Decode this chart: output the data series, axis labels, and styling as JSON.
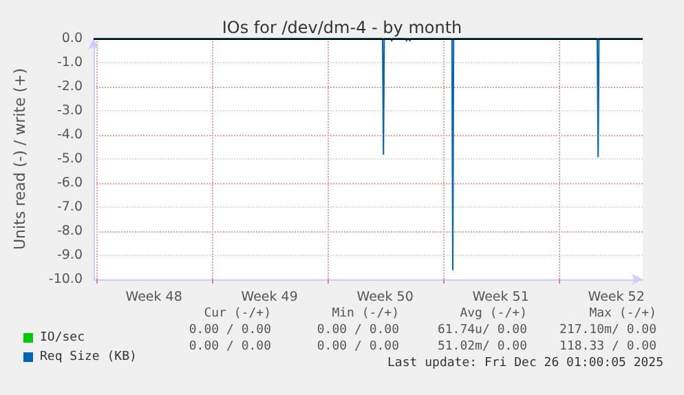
{
  "chart_data": {
    "type": "line",
    "title": "IOs for /dev/dm-4 - by month",
    "ylabel": "Units read (-) / write (+)",
    "xlim": [
      "2025-11-23T20:24",
      "2025-12-27T02:24"
    ],
    "ylim": [
      -10,
      0
    ],
    "xticks": [
      {
        "value": "2025-11-24",
        "label": null
      },
      {
        "value": "2025-11-27T12:00",
        "label": "Week 48"
      },
      {
        "value": "2025-12-01",
        "label": null
      },
      {
        "value": "2025-12-04T12:00",
        "label": "Week 49"
      },
      {
        "value": "2025-12-08",
        "label": null
      },
      {
        "value": "2025-12-11T12:00",
        "label": "Week 50"
      },
      {
        "value": "2025-12-15",
        "label": null
      },
      {
        "value": "2025-12-18T12:00",
        "label": "Week 51"
      },
      {
        "value": "2025-12-22",
        "label": null
      },
      {
        "value": "2025-12-25T12:00",
        "label": "Week 52"
      }
    ],
    "yticks": [
      {
        "value": -10,
        "label": "-10.0"
      },
      {
        "value": -9,
        "label": "-9.0"
      },
      {
        "value": -8,
        "label": "-8.0"
      },
      {
        "value": -7,
        "label": "-7.0"
      },
      {
        "value": -6,
        "label": "-6.0"
      },
      {
        "value": -5,
        "label": "-5.0"
      },
      {
        "value": -4,
        "label": "-4.0"
      },
      {
        "value": -3,
        "label": "-3.0"
      },
      {
        "value": -2,
        "label": "-2.0"
      },
      {
        "value": -1,
        "label": "-1.0"
      },
      {
        "value": 0,
        "label": "0.0"
      }
    ],
    "grid": true,
    "legend": "bottom left",
    "series": [
      {
        "name": "IO/sec",
        "color": "#00cc00"
      },
      {
        "name": "Req Size (KB)",
        "color": "#0066b3",
        "x": [
          "2025-11-23T20:24",
          "2025-12-11T08:24",
          "2025-12-11T09:36",
          "2025-12-11T10:48",
          "2025-12-11T20:24",
          "2025-12-11T21:36",
          "2025-12-11T22:48",
          "2025-12-12T18:00",
          "2025-12-12T19:12",
          "2025-12-12T20:24",
          "2025-12-12T22:48",
          "2025-12-13T00:00",
          "2025-12-13T01:12",
          "2025-12-15T13:12",
          "2025-12-15T14:24",
          "2025-12-15T15:36",
          "2025-12-24T08:24",
          "2025-12-24T09:36",
          "2025-12-24T10:48",
          "2025-12-27T02:24"
        ],
        "values": [
          0,
          0,
          -4.8,
          0,
          0,
          -0.1,
          0,
          0,
          -0.1,
          0,
          0,
          -0.1,
          0,
          0,
          -9.6,
          0,
          0,
          -4.9,
          0,
          0
        ]
      }
    ],
    "ref_lines": [
      {
        "axis": "y",
        "value": 0,
        "color": "#000000"
      }
    ],
    "annotations": [
      "Cur (-/+)",
      "Min (-/+)",
      "Avg (-/+)",
      "Max (-/+)",
      "0.00 / 0.00",
      "0.00 / 0.00",
      "61.74u/ 0.00",
      "217.10m/ 0.00",
      "0.00 / 0.00",
      "0.00 / 0.00",
      "51.02m/ 0.00",
      "118.33 / 0.00",
      "Last update: Fri Dec 26 01:00:05 2025"
    ]
  }
}
